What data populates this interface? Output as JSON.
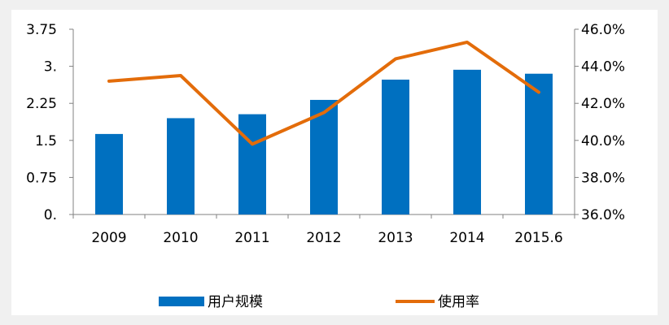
{
  "chart_data": {
    "type": "bar+line",
    "categories": [
      "2009",
      "2010",
      "2011",
      "2012",
      "2013",
      "2014",
      "2015.6"
    ],
    "y_left": {
      "ticks": [
        "0.",
        "0.75",
        "1.5",
        "2.25",
        "3.",
        "3.75"
      ],
      "min": 0,
      "max": 3.75
    },
    "y_right": {
      "ticks": [
        "36.0%",
        "38.0%",
        "40.0%",
        "42.0%",
        "44.0%",
        "46.0%"
      ],
      "min": 36.0,
      "max": 46.0
    },
    "series": [
      {
        "name": "用户规模",
        "type": "bar",
        "axis": "left",
        "values": [
          1.63,
          1.95,
          2.03,
          2.32,
          2.73,
          2.93,
          2.85
        ]
      },
      {
        "name": "使用率",
        "type": "line",
        "axis": "right",
        "values": [
          43.2,
          43.5,
          39.8,
          41.5,
          44.4,
          45.3,
          42.6
        ]
      }
    ],
    "colors": {
      "bar": "#0070c0",
      "line": "#e36c0a",
      "axis": "#808080"
    },
    "legend_position": "bottom"
  }
}
